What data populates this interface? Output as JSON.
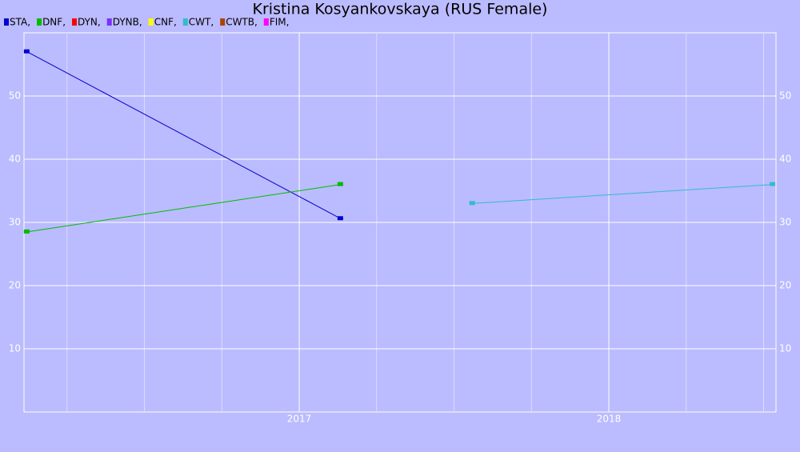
{
  "chart_data": {
    "type": "line",
    "title": "Kristina Kosyankovskaya (RUS Female)",
    "legend_separator": ",",
    "series": [
      {
        "name": "STA",
        "color": "#0000cc",
        "x": [
          2016.121,
          2017.134
        ],
        "values": [
          57,
          30.6
        ]
      },
      {
        "name": "DNF",
        "color": "#00bb00",
        "x": [
          2016.121,
          2017.134
        ],
        "values": [
          28.5,
          36
        ]
      },
      {
        "name": "DYN",
        "color": "#ff0000",
        "x": [],
        "values": []
      },
      {
        "name": "DYNB",
        "color": "#7733ff",
        "x": [],
        "values": []
      },
      {
        "name": "CNF",
        "color": "#ffff00",
        "x": [],
        "values": []
      },
      {
        "name": "CWT",
        "color": "#33bbcc",
        "x": [
          2017.56,
          2018.53
        ],
        "values": [
          33,
          36
        ]
      },
      {
        "name": "CWTB",
        "color": "#aa4400",
        "x": [],
        "values": []
      },
      {
        "name": "FIM",
        "color": "#ff00ff",
        "x": [],
        "values": []
      }
    ],
    "xlim": [
      2016.111,
      2018.54
    ],
    "xticks": [
      2017,
      2018
    ],
    "x_minor_grid": [
      2016.25,
      2016.5,
      2016.75,
      2017.25,
      2017.5,
      2017.75,
      2018.25,
      2018.5
    ],
    "ylim": [
      0,
      60
    ],
    "yticks": [
      10,
      20,
      30,
      40,
      50
    ],
    "grid": true
  }
}
